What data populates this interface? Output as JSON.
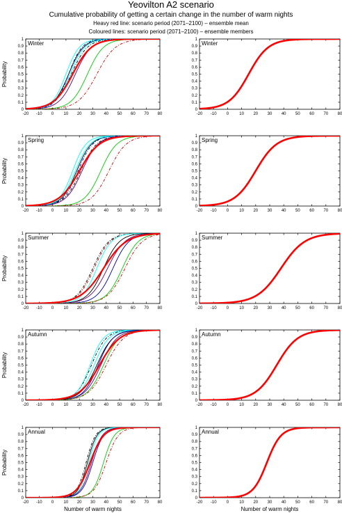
{
  "title": "Yeovilton A2 scenario",
  "subtitle": "Cumulative probability of getting a certain change in the number of warm nights",
  "notes": [
    "Heavy red line: scenario period (2071–2100) – ensemble mean",
    "Coloured lines: scenario period (2071–2100) – ensemble members"
  ],
  "colors": {
    "ensemble_mean": "#ff0000",
    "members": [
      "#000000",
      "#00ffff",
      "#00cc00",
      "#cc0000",
      "#660066",
      "#0000aa"
    ]
  },
  "chart_data": {
    "type": "line",
    "description_axes": {
      "xlabel": "Number of warm nights",
      "ylabel": "Probability",
      "xlim": [
        -20,
        80
      ],
      "ylim": [
        0,
        1
      ],
      "xticks": [
        -20,
        -10,
        0,
        10,
        20,
        30,
        40,
        50,
        60,
        70,
        80
      ],
      "yticks": [
        0,
        0.1,
        0.2,
        0.3,
        0.4,
        0.5,
        0.6,
        0.7,
        0.8,
        0.9,
        1
      ],
      "ytick_labels": [
        "0",
        "0.1",
        "0.2",
        "0.3",
        "0.4",
        "0.5",
        "0.6",
        "0.7",
        "0.8",
        "0.9",
        "1"
      ]
    },
    "panels": [
      {
        "season": "Winter",
        "ensemble_mean_median": 15,
        "ensemble_mean_spread": 7,
        "members": [
          {
            "color": "#000000",
            "median": 12,
            "spread": 5.5,
            "style": "solid"
          },
          {
            "color": "#000000",
            "median": 14,
            "spread": 6,
            "style": "dashdot"
          },
          {
            "color": "#00ffff",
            "median": 10,
            "spread": 5,
            "style": "solid"
          },
          {
            "color": "#00ffff",
            "median": 13,
            "spread": 5.5,
            "style": "solid"
          },
          {
            "color": "#660066",
            "median": 17,
            "spread": 6,
            "style": "solid"
          },
          {
            "color": "#0000aa",
            "median": 12,
            "spread": 5,
            "style": "dashdot"
          },
          {
            "color": "#00cc00",
            "median": 26,
            "spread": 6,
            "style": "solid"
          },
          {
            "color": "#cc0000",
            "median": 33,
            "spread": 7,
            "style": "dashdot"
          }
        ]
      },
      {
        "season": "Spring",
        "ensemble_mean_median": 20,
        "ensemble_mean_spread": 7.5,
        "members": [
          {
            "color": "#000000",
            "median": 18,
            "spread": 5.5,
            "style": "solid"
          },
          {
            "color": "#000000",
            "median": 21,
            "spread": 6,
            "style": "dashdot"
          },
          {
            "color": "#00ffff",
            "median": 15,
            "spread": 5,
            "style": "solid"
          },
          {
            "color": "#00ffff",
            "median": 17,
            "spread": 5.5,
            "style": "solid"
          },
          {
            "color": "#660066",
            "median": 22,
            "spread": 6,
            "style": "solid"
          },
          {
            "color": "#0000aa",
            "median": 19,
            "spread": 5.5,
            "style": "dashdot"
          },
          {
            "color": "#00cc00",
            "median": 36,
            "spread": 6,
            "style": "solid"
          },
          {
            "color": "#cc0000",
            "median": 42,
            "spread": 6.5,
            "style": "dashdot"
          }
        ]
      },
      {
        "season": "Summer",
        "ensemble_mean_median": 38,
        "ensemble_mean_spread": 8.5,
        "members": [
          {
            "color": "#000000",
            "median": 30,
            "spread": 6,
            "style": "dashdot"
          },
          {
            "color": "#cc0000",
            "median": 31,
            "spread": 6,
            "style": "dashdot"
          },
          {
            "color": "#00ffff",
            "median": 33,
            "spread": 5.5,
            "style": "solid"
          },
          {
            "color": "#000000",
            "median": 38,
            "spread": 6,
            "style": "solid"
          },
          {
            "color": "#660066",
            "median": 41,
            "spread": 6.5,
            "style": "solid"
          },
          {
            "color": "#0000aa",
            "median": 45,
            "spread": 6,
            "style": "solid"
          },
          {
            "color": "#00cc00",
            "median": 52,
            "spread": 6,
            "style": "solid"
          },
          {
            "color": "#cc0000",
            "median": 54,
            "spread": 6.5,
            "style": "dashdot"
          }
        ]
      },
      {
        "season": "Autumn",
        "ensemble_mean_median": 35,
        "ensemble_mean_spread": 7.5,
        "members": [
          {
            "color": "#000000",
            "median": 29,
            "spread": 5.5,
            "style": "dashdot"
          },
          {
            "color": "#00ffff",
            "median": 28,
            "spread": 5,
            "style": "solid"
          },
          {
            "color": "#00ffff",
            "median": 31,
            "spread": 5.5,
            "style": "solid"
          },
          {
            "color": "#000000",
            "median": 33,
            "spread": 6,
            "style": "solid"
          },
          {
            "color": "#660066",
            "median": 36,
            "spread": 6,
            "style": "solid"
          },
          {
            "color": "#0000aa",
            "median": 34,
            "spread": 5.5,
            "style": "solid"
          },
          {
            "color": "#00cc00",
            "median": 38,
            "spread": 6,
            "style": "solid"
          },
          {
            "color": "#cc0000",
            "median": 40,
            "spread": 6.5,
            "style": "dashdot"
          }
        ]
      },
      {
        "season": "Annual",
        "ensemble_mean_median": 28,
        "ensemble_mean_spread": 5,
        "members": [
          {
            "color": "#000000",
            "median": 26,
            "spread": 3.5,
            "style": "solid"
          },
          {
            "color": "#000000",
            "median": 25,
            "spread": 3.5,
            "style": "dashdot"
          },
          {
            "color": "#00ffff",
            "median": 27,
            "spread": 3.5,
            "style": "solid"
          },
          {
            "color": "#660066",
            "median": 29,
            "spread": 4,
            "style": "solid"
          },
          {
            "color": "#0000aa",
            "median": 30,
            "spread": 4,
            "style": "solid"
          },
          {
            "color": "#00cc00",
            "median": 38,
            "spread": 4,
            "style": "solid"
          },
          {
            "color": "#cc0000",
            "median": 40,
            "spread": 4.5,
            "style": "dashdot"
          }
        ]
      }
    ]
  }
}
